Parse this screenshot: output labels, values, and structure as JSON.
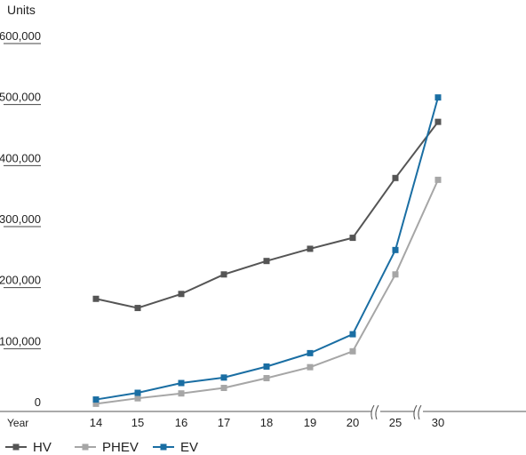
{
  "chart_data": {
    "type": "line",
    "ylabel": "Units",
    "xlabel": "Year",
    "categories": [
      "14",
      "15",
      "16",
      "17",
      "18",
      "19",
      "20",
      "25",
      "30"
    ],
    "axis_breaks_after": [
      "20",
      "25"
    ],
    "yticks": [
      0,
      100000,
      200000,
      300000,
      400000,
      500000,
      600000
    ],
    "ytick_labels": [
      "0",
      "100,000",
      "200,000",
      "300,000",
      "400,000",
      "500,000",
      "600,000"
    ],
    "ylim": [
      0,
      600000
    ],
    "grid": false,
    "legend_position": "bottom-left",
    "series": [
      {
        "name": "HV",
        "color": "#555555",
        "values": [
          170000,
          155000,
          178000,
          210000,
          232000,
          252000,
          270000,
          368000,
          460000
        ]
      },
      {
        "name": "PHEV",
        "color": "#a6a6a6",
        "values": [
          -2000,
          7000,
          15000,
          24000,
          40000,
          58000,
          84000,
          210000,
          365000
        ]
      },
      {
        "name": "EV",
        "color": "#1a6ea3",
        "values": [
          5000,
          16000,
          32000,
          41000,
          59000,
          81000,
          112000,
          250000,
          500000
        ]
      }
    ]
  }
}
